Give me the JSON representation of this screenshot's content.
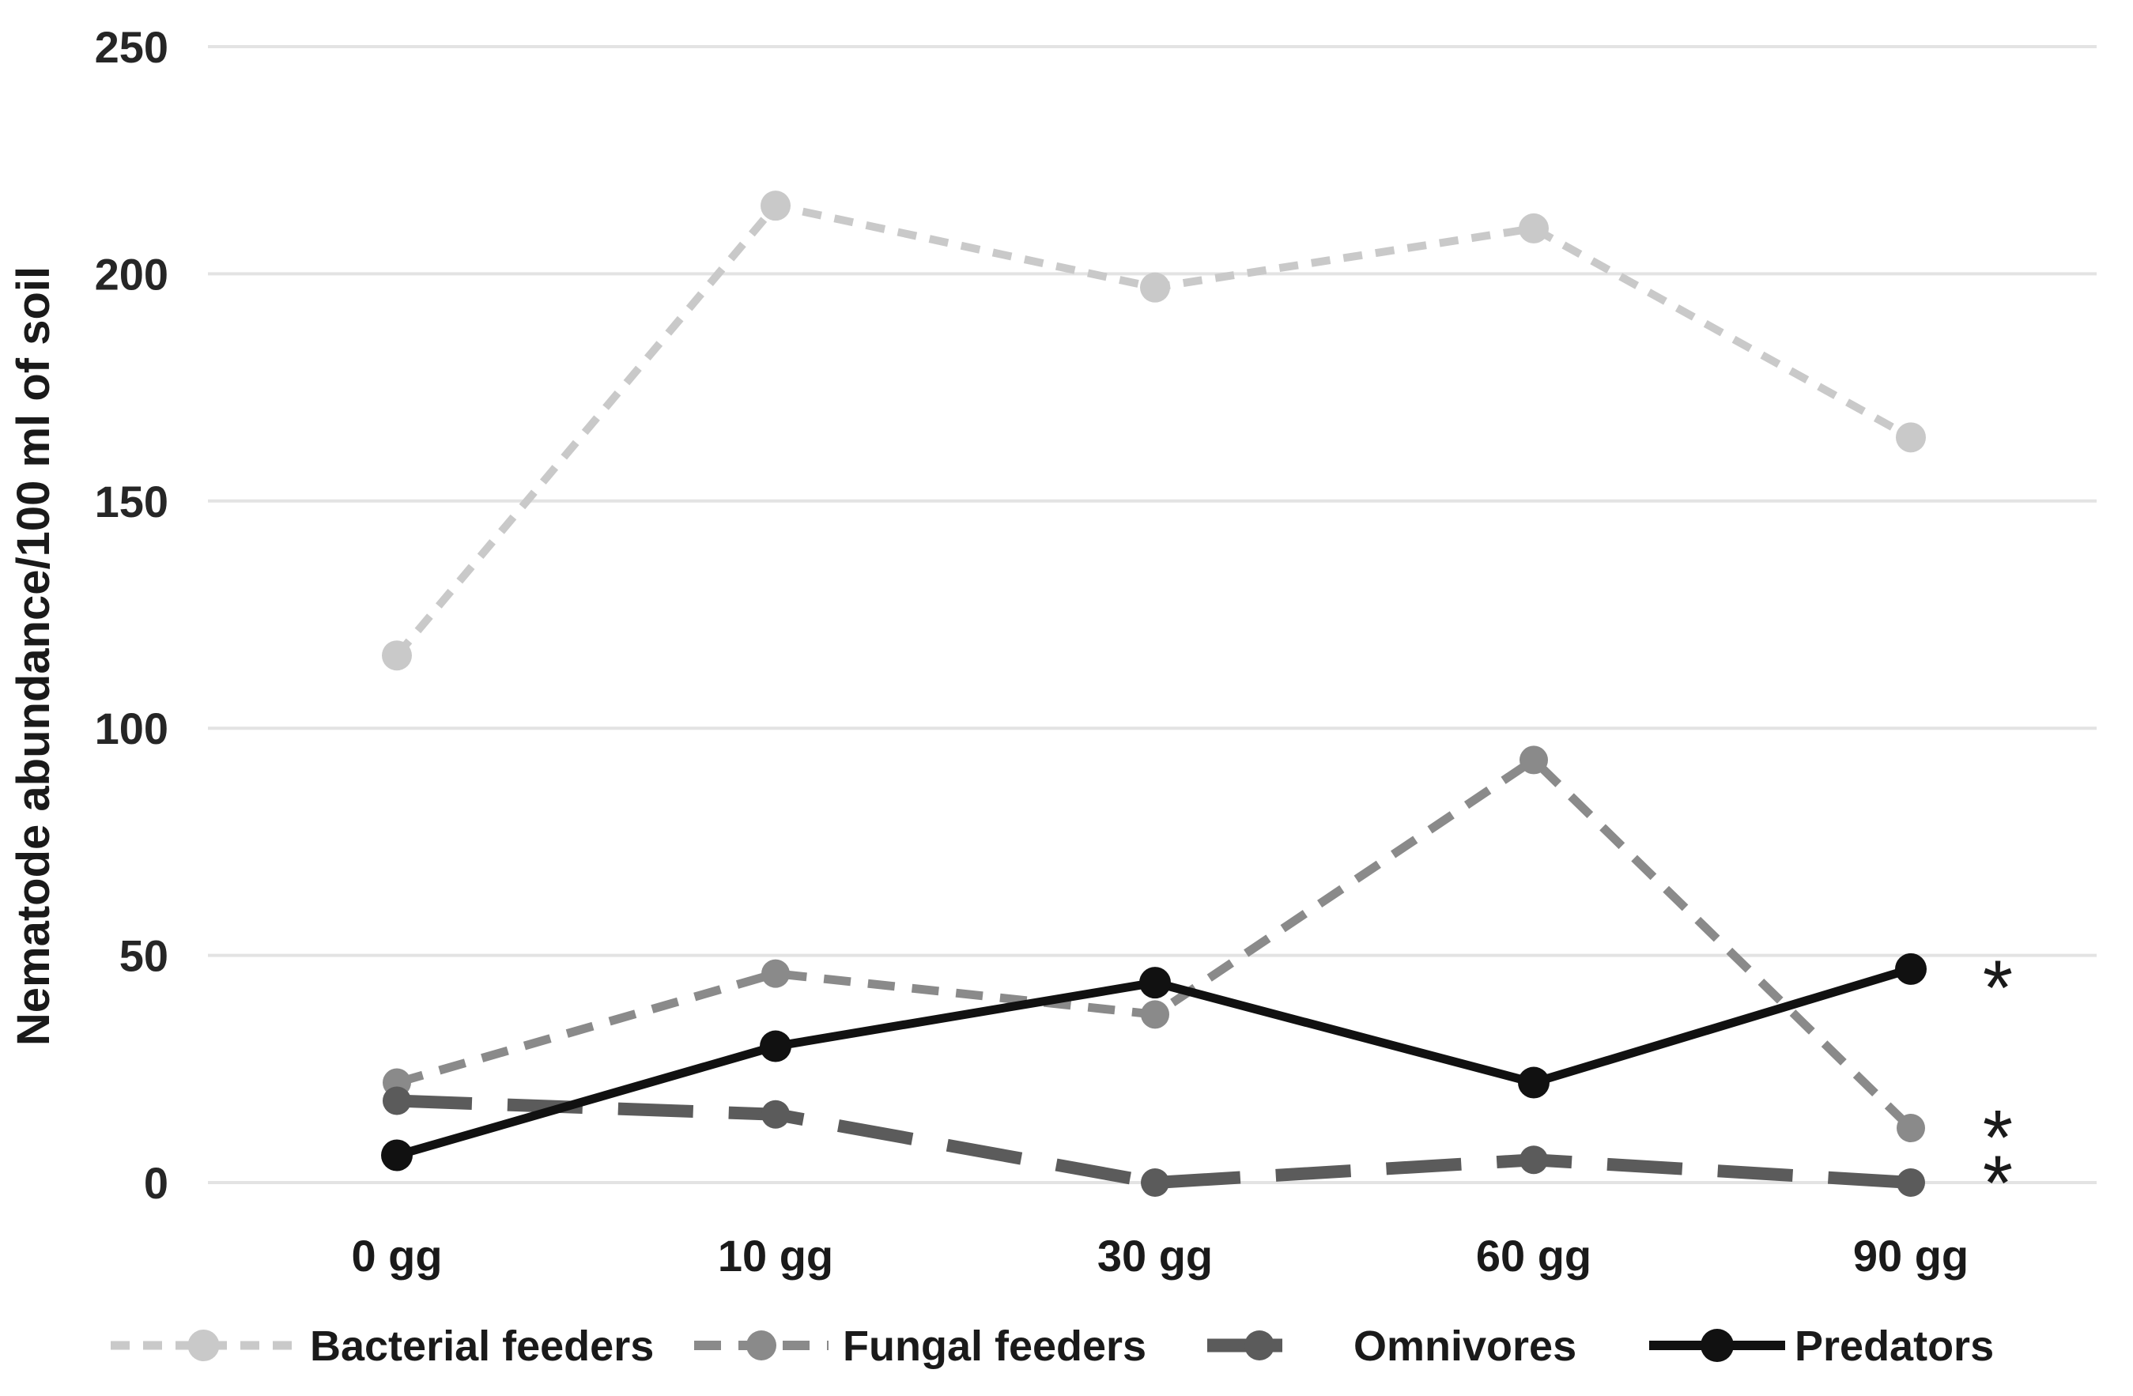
{
  "chart_data": {
    "type": "line",
    "title": "",
    "ylabel": "Nematode abundance/100 ml of soil",
    "xlabel": "",
    "categories": [
      "0 gg",
      "10 gg",
      "30 gg",
      "60 gg",
      "90 gg"
    ],
    "y_ticks": [
      250,
      200,
      150,
      100,
      50,
      0
    ],
    "ylim": [
      0,
      250
    ],
    "grid": "horizontal gridlines every 50 units",
    "legend_position": "bottom",
    "gridline_color": "#e3e3e3",
    "background_color": "#ffffff",
    "series": [
      {
        "name": "Bacterial feeders",
        "values": [
          116,
          215,
          197,
          210,
          164
        ],
        "color": "#c9c9c9",
        "dash": "short",
        "line_width": 10,
        "marker_r": 19
      },
      {
        "name": "Fungal feeders",
        "values": [
          22,
          46,
          37,
          93,
          12
        ],
        "color": "#8a8a8a",
        "dash": "medium",
        "line_width": 11,
        "marker_r": 18
      },
      {
        "name": "Omnivores",
        "values": [
          18,
          15,
          0,
          5,
          0
        ],
        "color": "#5b5b5b",
        "dash": "long",
        "line_width": 16,
        "marker_r": 18
      },
      {
        "name": "Predators",
        "values": [
          6,
          30,
          44,
          22,
          47
        ],
        "color": "#111111",
        "dash": "solid",
        "line_width": 11,
        "marker_r": 20
      }
    ],
    "annotations": [
      {
        "text": "*",
        "target_series": "Predators",
        "category": "90 gg",
        "y_value": 45
      },
      {
        "text": "*",
        "target_series": "Fungal feeders",
        "category": "90 gg",
        "y_value": 12
      },
      {
        "text": "*",
        "target_series": "Omnivores",
        "category": "90 gg",
        "y_value": 2
      }
    ]
  }
}
